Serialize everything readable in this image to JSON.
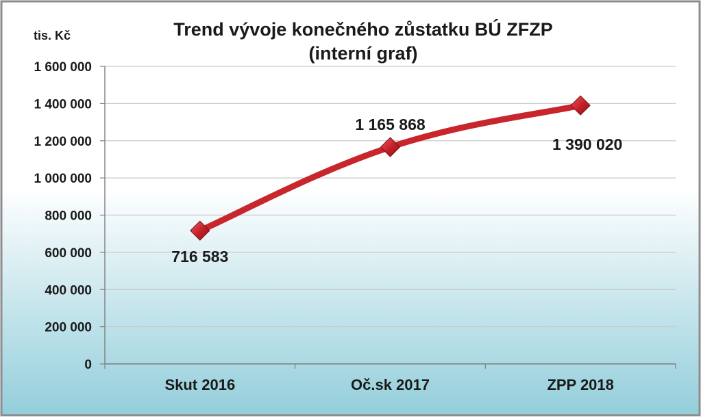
{
  "chart_data": {
    "type": "line",
    "title": "Trend vývoje konečného zůstatku BÚ ZFZP",
    "subtitle": "(interní graf)",
    "ylabel": "tis. Kč",
    "xlabel": "",
    "categories": [
      "Skut 2016",
      "Oč.sk 2017",
      "ZPP 2018"
    ],
    "series": [
      {
        "values": [
          716583,
          1165868,
          1390020
        ],
        "labels": [
          "716 583",
          "1 165 868",
          "1 390 020"
        ]
      }
    ],
    "ylim": [
      0,
      1600000
    ],
    "yticks": [
      0,
      200000,
      400000,
      600000,
      800000,
      1000000,
      1200000,
      1400000,
      1600000
    ],
    "ytick_labels": [
      "0",
      "200 000",
      "400 000",
      "600 000",
      "800 000",
      "1 000 000",
      "1 200 000",
      "1 400 000",
      "1 600 000"
    ],
    "grid": true,
    "line_color": "#c8252d",
    "marker": "diamond",
    "background": "gradient-white-to-light-blue"
  }
}
